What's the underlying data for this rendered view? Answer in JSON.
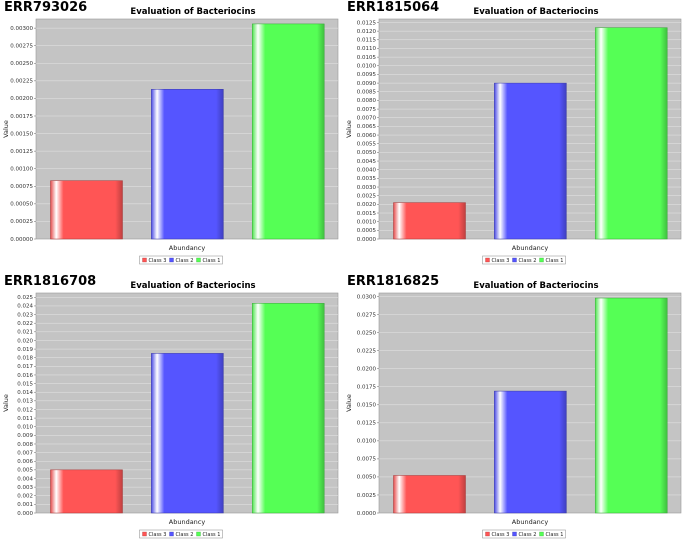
{
  "chart_data": [
    {
      "type": "bar",
      "sample_id": "ERR793026",
      "title": "Evaluation of Bacteriocins",
      "xlabel": "Abundancy",
      "ylabel": "Value",
      "categories": [
        "Abundancy"
      ],
      "series": [
        {
          "name": "Class 3",
          "values": [
            0.00083
          ],
          "color": "#ff5555"
        },
        {
          "name": "Class 2",
          "values": [
            0.00213
          ],
          "color": "#5555ff"
        },
        {
          "name": "Class 1",
          "values": [
            0.00306
          ],
          "color": "#55ff55"
        }
      ],
      "ylim": [
        0,
        0.00313
      ],
      "yticks": [
        "0.00000",
        "0.00025",
        "0.00050",
        "0.00075",
        "0.00100",
        "0.00125",
        "0.00150",
        "0.00175",
        "0.00200",
        "0.00225",
        "0.00250",
        "0.00275",
        "0.00300"
      ],
      "grid": true,
      "legend": "bottom-center"
    },
    {
      "type": "bar",
      "sample_id": "ERR1815064",
      "title": "Evaluation of Bacteriocins",
      "xlabel": "Abundancy",
      "ylabel": "Value",
      "categories": [
        "Abundancy"
      ],
      "series": [
        {
          "name": "Class 3",
          "values": [
            0.0021
          ],
          "color": "#ff5555"
        },
        {
          "name": "Class 2",
          "values": [
            0.009
          ],
          "color": "#5555ff"
        },
        {
          "name": "Class 1",
          "values": [
            0.0122
          ],
          "color": "#55ff55"
        }
      ],
      "ylim": [
        0,
        0.0127
      ],
      "yticks": [
        "0.0000",
        "0.0005",
        "0.0010",
        "0.0015",
        "0.0020",
        "0.0025",
        "0.0030",
        "0.0035",
        "0.0040",
        "0.0045",
        "0.0050",
        "0.0055",
        "0.0060",
        "0.0065",
        "0.0070",
        "0.0075",
        "0.0080",
        "0.0085",
        "0.0090",
        "0.0095",
        "0.0100",
        "0.0105",
        "0.0110",
        "0.0115",
        "0.0120",
        "0.0125"
      ],
      "grid": true,
      "legend": "bottom-center"
    },
    {
      "type": "bar",
      "sample_id": "ERR1816708",
      "title": "Evaluation of Bacteriocins",
      "xlabel": "Abundancy",
      "ylabel": "Value",
      "categories": [
        "Abundancy"
      ],
      "series": [
        {
          "name": "Class 3",
          "values": [
            0.005
          ],
          "color": "#ff5555"
        },
        {
          "name": "Class 2",
          "values": [
            0.0185
          ],
          "color": "#5555ff"
        },
        {
          "name": "Class 1",
          "values": [
            0.0243
          ],
          "color": "#55ff55"
        }
      ],
      "ylim": [
        0,
        0.0255
      ],
      "yticks": [
        "0.000",
        "0.001",
        "0.002",
        "0.003",
        "0.004",
        "0.005",
        "0.006",
        "0.007",
        "0.008",
        "0.009",
        "0.010",
        "0.011",
        "0.012",
        "0.013",
        "0.014",
        "0.015",
        "0.016",
        "0.017",
        "0.018",
        "0.019",
        "0.020",
        "0.021",
        "0.022",
        "0.023",
        "0.024",
        "0.025"
      ],
      "grid": true,
      "legend": "bottom-center"
    },
    {
      "type": "bar",
      "sample_id": "ERR1816825",
      "title": "Evaluation of Bacteriocins",
      "xlabel": "Abundancy",
      "ylabel": "Value",
      "categories": [
        "Abundancy"
      ],
      "series": [
        {
          "name": "Class 3",
          "values": [
            0.0052
          ],
          "color": "#ff5555"
        },
        {
          "name": "Class 2",
          "values": [
            0.0169
          ],
          "color": "#5555ff"
        },
        {
          "name": "Class 1",
          "values": [
            0.0298
          ],
          "color": "#55ff55"
        }
      ],
      "ylim": [
        0,
        0.0305
      ],
      "yticks": [
        "0.0000",
        "0.0025",
        "0.0050",
        "0.0075",
        "0.0100",
        "0.0125",
        "0.0150",
        "0.0175",
        "0.0200",
        "0.0225",
        "0.0250",
        "0.0275",
        "0.0300"
      ],
      "grid": true,
      "legend": "bottom-center"
    }
  ]
}
